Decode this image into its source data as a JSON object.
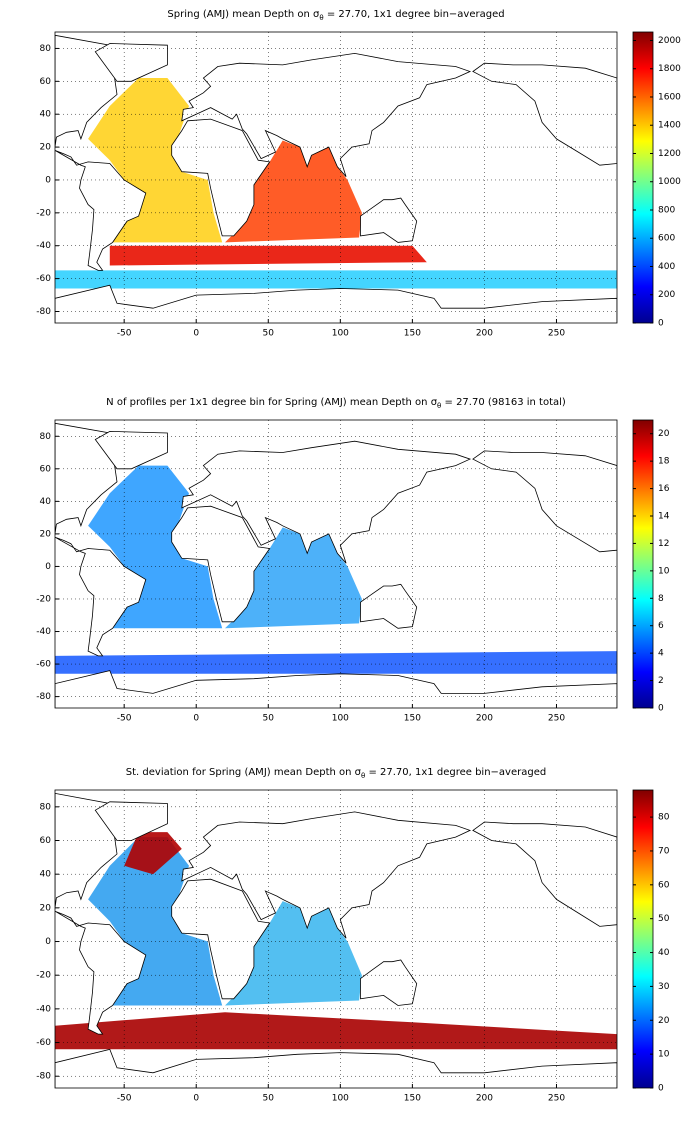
{
  "chart_data": [
    {
      "type": "heatmap",
      "title": [
        "Spring (AMJ) mean Depth on σ",
        "θ",
        " = 27.70, 1x1 degree bin−averaged"
      ],
      "xlim": [
        -98,
        292
      ],
      "ylim": [
        -87,
        90
      ],
      "xticks": [
        -50,
        0,
        50,
        100,
        150,
        200,
        250
      ],
      "yticks": [
        -80,
        -60,
        -40,
        -20,
        0,
        20,
        40,
        60,
        80
      ],
      "grid": true,
      "colormap": "jet",
      "colorbar": {
        "lim": [
          0,
          2060
        ],
        "ticks": [
          0,
          200,
          400,
          600,
          800,
          1000,
          1200,
          1400,
          1600,
          1800,
          2000
        ]
      }
    },
    {
      "type": "heatmap",
      "title": [
        "N of profiles per 1x1 degree bin for Spring (AMJ) mean Depth on σ",
        "θ",
        " = 27.70 (98163 in total)"
      ],
      "xlim": [
        -98,
        292
      ],
      "ylim": [
        -87,
        90
      ],
      "xticks": [
        -50,
        0,
        50,
        100,
        150,
        200,
        250
      ],
      "yticks": [
        -80,
        -60,
        -40,
        -20,
        0,
        20,
        40,
        60,
        80
      ],
      "grid": true,
      "colormap": "jet",
      "colorbar": {
        "lim": [
          0,
          21
        ],
        "ticks": [
          0,
          2,
          4,
          6,
          8,
          10,
          12,
          14,
          16,
          18,
          20
        ]
      }
    },
    {
      "type": "heatmap",
      "title": [
        "St. deviation for Spring (AMJ) mean Depth on σ",
        "θ",
        " = 27.70, 1x1 degree bin−averaged"
      ],
      "xlim": [
        -98,
        292
      ],
      "ylim": [
        -87,
        90
      ],
      "xticks": [
        -50,
        0,
        50,
        100,
        150,
        200,
        250
      ],
      "yticks": [
        -80,
        -60,
        -40,
        -20,
        0,
        20,
        40,
        60,
        80
      ],
      "grid": true,
      "colormap": "jet",
      "colorbar": {
        "lim": [
          0,
          88
        ],
        "ticks": [
          0,
          10,
          20,
          30,
          40,
          50,
          60,
          70,
          80
        ]
      }
    }
  ]
}
